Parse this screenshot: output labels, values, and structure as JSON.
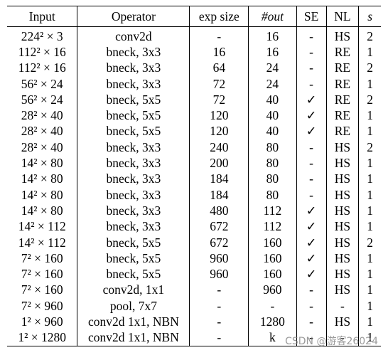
{
  "table": {
    "headers": [
      {
        "label": "Input"
      },
      {
        "label": "Operator"
      },
      {
        "label": "exp size"
      },
      {
        "label": "#out"
      },
      {
        "label": "SE"
      },
      {
        "label": "NL"
      },
      {
        "label": "s"
      }
    ],
    "rows": [
      {
        "input": "224² × 3",
        "operator": "conv2d",
        "exp_size": "-",
        "out": "16",
        "se": "-",
        "nl": "HS",
        "s": "2"
      },
      {
        "input": "112² × 16",
        "operator": "bneck, 3x3",
        "exp_size": "16",
        "out": "16",
        "se": "-",
        "nl": "RE",
        "s": "1"
      },
      {
        "input": "112² × 16",
        "operator": "bneck, 3x3",
        "exp_size": "64",
        "out": "24",
        "se": "-",
        "nl": "RE",
        "s": "2"
      },
      {
        "input": "56² × 24",
        "operator": "bneck, 3x3",
        "exp_size": "72",
        "out": "24",
        "se": "-",
        "nl": "RE",
        "s": "1"
      },
      {
        "input": "56² × 24",
        "operator": "bneck, 5x5",
        "exp_size": "72",
        "out": "40",
        "se": "✓",
        "nl": "RE",
        "s": "2"
      },
      {
        "input": "28² × 40",
        "operator": "bneck, 5x5",
        "exp_size": "120",
        "out": "40",
        "se": "✓",
        "nl": "RE",
        "s": "1"
      },
      {
        "input": "28² × 40",
        "operator": "bneck, 5x5",
        "exp_size": "120",
        "out": "40",
        "se": "✓",
        "nl": "RE",
        "s": "1"
      },
      {
        "input": "28² × 40",
        "operator": "bneck, 3x3",
        "exp_size": "240",
        "out": "80",
        "se": "-",
        "nl": "HS",
        "s": "2"
      },
      {
        "input": "14² × 80",
        "operator": "bneck, 3x3",
        "exp_size": "200",
        "out": "80",
        "se": "-",
        "nl": "HS",
        "s": "1"
      },
      {
        "input": "14² × 80",
        "operator": "bneck, 3x3",
        "exp_size": "184",
        "out": "80",
        "se": "-",
        "nl": "HS",
        "s": "1"
      },
      {
        "input": "14² × 80",
        "operator": "bneck, 3x3",
        "exp_size": "184",
        "out": "80",
        "se": "-",
        "nl": "HS",
        "s": "1"
      },
      {
        "input": "14² × 80",
        "operator": "bneck, 3x3",
        "exp_size": "480",
        "out": "112",
        "se": "✓",
        "nl": "HS",
        "s": "1"
      },
      {
        "input": "14² × 112",
        "operator": "bneck, 3x3",
        "exp_size": "672",
        "out": "112",
        "se": "✓",
        "nl": "HS",
        "s": "1"
      },
      {
        "input": "14² × 112",
        "operator": "bneck, 5x5",
        "exp_size": "672",
        "out": "160",
        "se": "✓",
        "nl": "HS",
        "s": "2"
      },
      {
        "input": "7² × 160",
        "operator": "bneck, 5x5",
        "exp_size": "960",
        "out": "160",
        "se": "✓",
        "nl": "HS",
        "s": "1"
      },
      {
        "input": "7² × 160",
        "operator": "bneck, 5x5",
        "exp_size": "960",
        "out": "160",
        "se": "✓",
        "nl": "HS",
        "s": "1"
      },
      {
        "input": "7² × 160",
        "operator": "conv2d, 1x1",
        "exp_size": "-",
        "out": "960",
        "se": "-",
        "nl": "HS",
        "s": "1"
      },
      {
        "input": "7² × 960",
        "operator": "pool, 7x7",
        "exp_size": "-",
        "out": "-",
        "se": "-",
        "nl": "-",
        "s": "1"
      },
      {
        "input": "1² × 960",
        "operator": "conv2d 1x1, NBN",
        "exp_size": "-",
        "out": "1280",
        "se": "-",
        "nl": "HS",
        "s": "1"
      },
      {
        "input": "1² × 1280",
        "operator": "conv2d 1x1, NBN",
        "exp_size": "-",
        "out": "k",
        "se": "-",
        "nl": "-",
        "s": "1"
      }
    ]
  },
  "watermark": "CSDN @游客26024"
}
